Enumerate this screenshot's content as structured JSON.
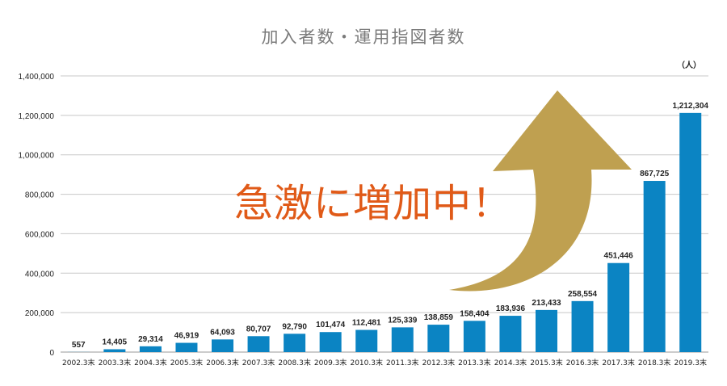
{
  "chart_data": {
    "type": "bar",
    "title": "加入者数・運用指図者数",
    "unit_label": "（人）",
    "categories": [
      "2002.3末",
      "2003.3末",
      "2004.3末",
      "2005.3末",
      "2006.3末",
      "2007.3末",
      "2008.3末",
      "2009.3末",
      "2010.3末",
      "2011.3末",
      "2012.3末",
      "2013.3末",
      "2014.3末",
      "2015.3末",
      "2016.3末",
      "2017.3末",
      "2018.3末",
      "2019.3末"
    ],
    "values": [
      557,
      14405,
      29314,
      46919,
      64093,
      80707,
      92790,
      101474,
      112481,
      125339,
      138859,
      158404,
      183936,
      213433,
      258554,
      451446,
      867725,
      1212304
    ],
    "value_labels": [
      "557",
      "14,405",
      "29,314",
      "46,919",
      "64,093",
      "80,707",
      "92,790",
      "101,474",
      "112,481",
      "125,339",
      "138,859",
      "158,404",
      "183,936",
      "213,433",
      "258,554",
      "451,446",
      "867,725",
      "1,212,304"
    ],
    "ylim": [
      0,
      1400000
    ],
    "yticks": [
      0,
      200000,
      400000,
      600000,
      800000,
      1000000,
      1200000,
      1400000
    ],
    "ytick_labels": [
      "0",
      "200,000",
      "400,000",
      "600,000",
      "800,000",
      "1,000,000",
      "1,200,000",
      "1,400,000"
    ],
    "grid": true,
    "bar_color": "#0b84c3",
    "annotation": "急激に増加中！",
    "annotation_color": "#e05a18",
    "arrow_color": "#bfa050"
  }
}
